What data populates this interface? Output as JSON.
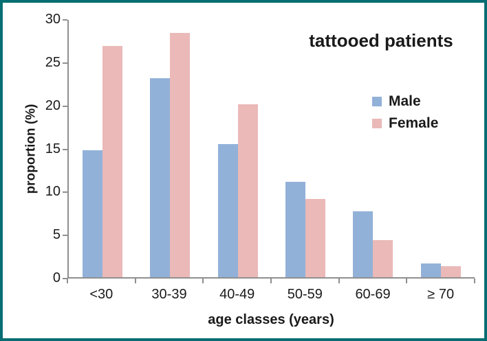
{
  "frame": {
    "border_color": "#066e72",
    "background": "#ffffff"
  },
  "chart_data": {
    "type": "bar",
    "title": "tattooed patients",
    "xlabel": "age classes (years)",
    "ylabel": "proportion (%)",
    "categories": [
      "<30",
      "30-39",
      "40-49",
      "50-59",
      "60-69",
      "≥ 70"
    ],
    "series": [
      {
        "name": "Male",
        "color": "#92b1d9",
        "values": [
          14.8,
          23.2,
          15.5,
          11.1,
          7.7,
          1.6
        ]
      },
      {
        "name": "Female",
        "color": "#eab9b8",
        "values": [
          27.0,
          28.5,
          20.2,
          9.1,
          4.3,
          1.3
        ]
      }
    ],
    "ylim": [
      0,
      30
    ],
    "y_ticks": [
      0,
      5,
      10,
      15,
      20,
      25,
      30
    ],
    "grid": false,
    "legend_position": "middle-right",
    "axis_color": "#8f8f8f",
    "text_color": "#1a1a1a"
  }
}
